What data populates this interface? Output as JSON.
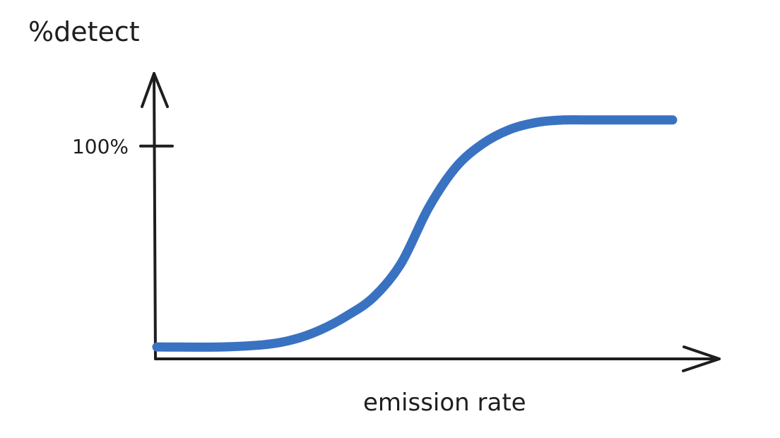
{
  "chart_data": {
    "type": "line",
    "title": "",
    "xlabel": "emission rate",
    "ylabel": "%detect",
    "y_ticks": [
      {
        "value": 100,
        "label": "100%"
      }
    ],
    "xlim": [
      0,
      100
    ],
    "ylim": [
      0,
      110
    ],
    "grid": false,
    "series": [
      {
        "color": "#3a72c2",
        "x": [
          0,
          12,
          20,
          25,
          30,
          35,
          40,
          45,
          50,
          55,
          60,
          65,
          70,
          75,
          80,
          85,
          90,
          95
        ],
        "y": [
          5,
          5,
          6,
          8,
          12,
          18,
          26,
          40,
          63,
          80,
          90,
          96,
          99,
          100,
          100,
          100,
          100,
          100
        ]
      }
    ]
  }
}
